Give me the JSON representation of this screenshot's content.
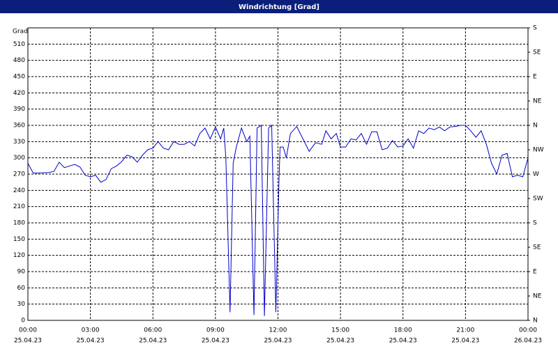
{
  "chart_data": {
    "type": "line",
    "title": "Windrichtung [Grad]",
    "y_label": "Grad",
    "series": [
      {
        "name": "Windrichtung",
        "color": "#0000c8",
        "x": [
          0,
          0.25,
          0.5,
          1,
          1.25,
          1.5,
          1.75,
          2,
          2.25,
          2.5,
          2.75,
          3,
          3.25,
          3.5,
          3.75,
          4,
          4.25,
          4.5,
          4.75,
          5,
          5.25,
          5.5,
          5.75,
          6,
          6.25,
          6.5,
          6.75,
          7,
          7.25,
          7.5,
          7.75,
          8,
          8.25,
          8.5,
          8.75,
          9,
          9.25,
          9.4,
          9.5,
          9.7,
          9.85,
          10,
          10.25,
          10.5,
          10.65,
          10.85,
          11,
          11.2,
          11.35,
          11.55,
          11.7,
          11.9,
          12.05,
          12.1,
          12.25,
          12.4,
          12.6,
          12.9,
          13.2,
          13.5,
          13.8,
          14.1,
          14.3,
          14.55,
          14.8,
          15,
          15.25,
          15.5,
          15.75,
          16,
          16.25,
          16.5,
          16.75,
          17,
          17.25,
          17.5,
          17.75,
          18,
          18.25,
          18.5,
          18.75,
          19,
          19.25,
          19.5,
          19.75,
          20,
          20.25,
          20.5,
          20.75,
          21,
          21.25,
          21.5,
          21.75,
          22,
          22.25,
          22.5,
          22.75,
          23,
          23.25,
          23.5,
          23.75,
          24
        ],
        "values": [
          290,
          272,
          272,
          273,
          275,
          292,
          282,
          285,
          288,
          283,
          268,
          265,
          268,
          255,
          260,
          280,
          285,
          293,
          305,
          302,
          292,
          305,
          315,
          318,
          330,
          318,
          315,
          330,
          325,
          325,
          330,
          322,
          345,
          355,
          335,
          357,
          335,
          355,
          300,
          15,
          290,
          320,
          355,
          330,
          340,
          10,
          355,
          360,
          8,
          355,
          360,
          15,
          260,
          320,
          320,
          300,
          345,
          358,
          335,
          312,
          328,
          325,
          350,
          335,
          345,
          320,
          320,
          335,
          333,
          345,
          325,
          348,
          348,
          315,
          318,
          332,
          320,
          322,
          335,
          318,
          350,
          345,
          355,
          352,
          357,
          350,
          357,
          358,
          360,
          360,
          350,
          338,
          350,
          325,
          290,
          270,
          305,
          308,
          265,
          268,
          265,
          300
        ]
      }
    ],
    "xlim": [
      0,
      24
    ],
    "ylim": [
      0,
      540
    ],
    "y2lim": [
      0,
      540
    ],
    "xticks": [
      {
        "value": 0,
        "label": "00:00",
        "date": "25.04.23"
      },
      {
        "value": 3,
        "label": "03:00",
        "date": "25.04.23"
      },
      {
        "value": 6,
        "label": "06:00",
        "date": "25.04.23"
      },
      {
        "value": 9,
        "label": "09:00",
        "date": "25.04.23"
      },
      {
        "value": 12,
        "label": "12:00",
        "date": "25.04.23"
      },
      {
        "value": 15,
        "label": "15:00",
        "date": "25.04.23"
      },
      {
        "value": 18,
        "label": "18:00",
        "date": "25.04.23"
      },
      {
        "value": 21,
        "label": "21:00",
        "date": "25.04.23"
      },
      {
        "value": 24,
        "label": "00:00",
        "date": "26.04.23"
      }
    ],
    "yticks": [
      0,
      30,
      60,
      90,
      120,
      150,
      180,
      210,
      240,
      270,
      300,
      330,
      360,
      390,
      420,
      450,
      480,
      510
    ],
    "y2ticks": [
      {
        "value": 540,
        "label": "S"
      },
      {
        "value": 495,
        "label": "SE"
      },
      {
        "value": 450,
        "label": "E"
      },
      {
        "value": 405,
        "label": "NE"
      },
      {
        "value": 360,
        "label": "N"
      },
      {
        "value": 315,
        "label": "NW"
      },
      {
        "value": 270,
        "label": "W"
      },
      {
        "value": 225,
        "label": "SW"
      },
      {
        "value": 180,
        "label": "S"
      },
      {
        "value": 135,
        "label": "SE"
      },
      {
        "value": 90,
        "label": "E"
      },
      {
        "value": 45,
        "label": "NE"
      },
      {
        "value": 0,
        "label": "N"
      }
    ],
    "grid": true
  }
}
